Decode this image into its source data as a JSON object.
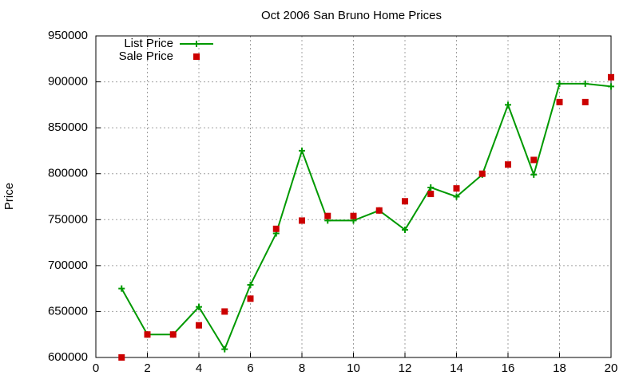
{
  "chart_data": {
    "type": "line",
    "title": "Oct 2006 San Bruno Home Prices",
    "y_label": "Price",
    "x": [
      1,
      2,
      3,
      4,
      5,
      6,
      7,
      8,
      9,
      10,
      11,
      12,
      13,
      14,
      15,
      16,
      17,
      18,
      19,
      20
    ],
    "series": [
      {
        "name": "List Price",
        "color": "#009900",
        "mode": "linespoints",
        "values": [
          675000,
          625000,
          625000,
          655000,
          609000,
          679000,
          735000,
          825000,
          749000,
          749000,
          760000,
          739000,
          785000,
          775000,
          799000,
          875000,
          799000,
          898000,
          898000,
          895000
        ]
      },
      {
        "name": "Sale Price",
        "color": "#cc0000",
        "mode": "points",
        "values": [
          600000,
          625000,
          625000,
          635000,
          650000,
          664000,
          740000,
          749000,
          754000,
          754000,
          760000,
          770000,
          778000,
          784000,
          800000,
          810000,
          815000,
          878000,
          878000,
          905000
        ]
      }
    ],
    "xlim": [
      0,
      20
    ],
    "xticks": [
      0,
      2,
      4,
      6,
      8,
      10,
      12,
      14,
      16,
      18,
      20
    ],
    "ylim": [
      600000,
      950000
    ],
    "yticks": [
      600000,
      650000,
      700000,
      750000,
      800000,
      850000,
      900000,
      950000
    ],
    "grid": true,
    "legend": "top-left"
  }
}
